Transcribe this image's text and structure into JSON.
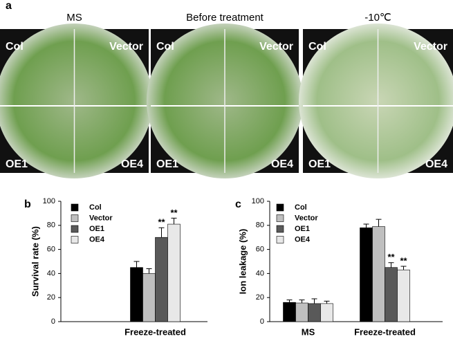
{
  "panel_a": {
    "label": "a",
    "plates": [
      {
        "title": "MS"
      },
      {
        "title": "Before treatment"
      },
      {
        "title": "-10℃"
      }
    ],
    "quadrant_labels": [
      "Col",
      "Vector",
      "OE1",
      "OE4"
    ]
  },
  "chart_data": [
    {
      "type": "bar",
      "label": "b",
      "y_label": "Survival rate (%)",
      "categories": [
        null,
        "Freeze-treated"
      ],
      "series": [
        {
          "name": "Col",
          "color": "#000000",
          "values": [
            null,
            45
          ],
          "errors": [
            null,
            5
          ]
        },
        {
          "name": "Vector",
          "color": "#bfbfbf",
          "values": [
            null,
            40
          ],
          "errors": [
            null,
            4
          ]
        },
        {
          "name": "OE1",
          "color": "#595959",
          "values": [
            null,
            70
          ],
          "errors": [
            null,
            8
          ],
          "marks": [
            null,
            "**"
          ]
        },
        {
          "name": "OE4",
          "color": "#e8e8e8",
          "values": [
            null,
            81
          ],
          "errors": [
            null,
            5
          ],
          "marks": [
            null,
            "**"
          ]
        }
      ],
      "ylim": [
        0,
        100
      ],
      "yticks": [
        0,
        20,
        40,
        60,
        80,
        100
      ]
    },
    {
      "type": "bar",
      "label": "c",
      "y_label": "Ion leakage (%)",
      "categories": [
        "MS",
        "Freeze-treated"
      ],
      "series": [
        {
          "name": "Col",
          "color": "#000000",
          "values": [
            16,
            78
          ],
          "errors": [
            2,
            3
          ]
        },
        {
          "name": "Vector",
          "color": "#bfbfbf",
          "values": [
            15.5,
            79
          ],
          "errors": [
            2.5,
            6
          ]
        },
        {
          "name": "OE1",
          "color": "#595959",
          "values": [
            15,
            45
          ],
          "errors": [
            4,
            4
          ],
          "marks": [
            null,
            "**"
          ]
        },
        {
          "name": "OE4",
          "color": "#e8e8e8",
          "values": [
            15,
            43
          ],
          "errors": [
            2,
            3
          ],
          "marks": [
            null,
            "**"
          ]
        }
      ],
      "ylim": [
        0,
        100
      ],
      "yticks": [
        0,
        20,
        40,
        60,
        80,
        100
      ]
    }
  ]
}
